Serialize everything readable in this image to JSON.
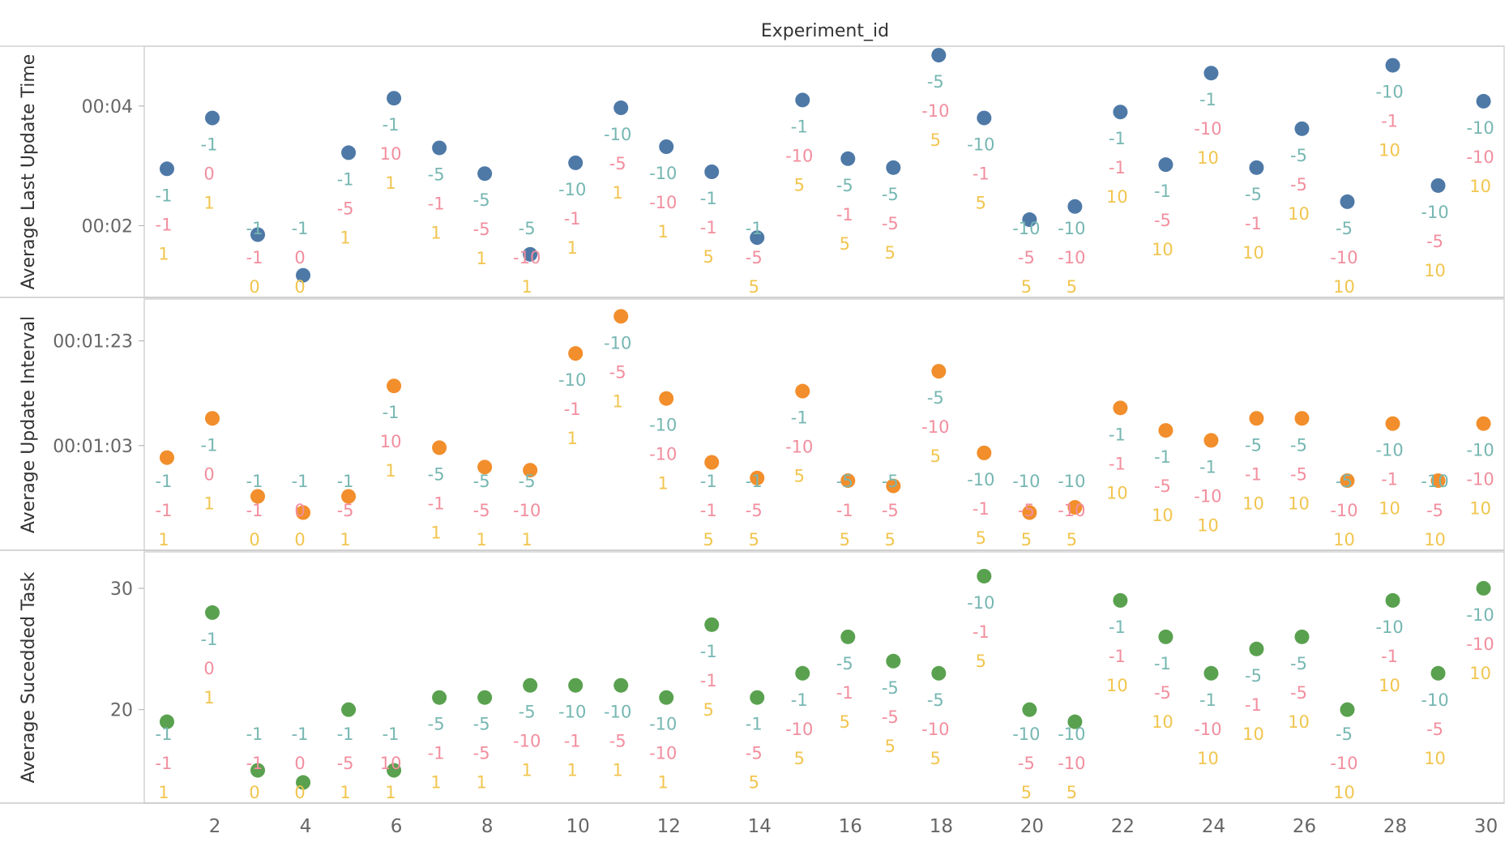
{
  "chart_data": {
    "type": "scatter",
    "title": "Experiment_id",
    "x": [
      1,
      2,
      3,
      4,
      5,
      6,
      7,
      8,
      9,
      10,
      11,
      12,
      13,
      14,
      15,
      16,
      17,
      18,
      19,
      20,
      21,
      22,
      23,
      24,
      25,
      26,
      27,
      28,
      29,
      30
    ],
    "x_ticks": [
      2,
      4,
      6,
      8,
      10,
      12,
      14,
      16,
      18,
      20,
      22,
      24,
      26,
      28,
      30
    ],
    "x_tick_labels": [
      "2",
      "4",
      "6",
      "8",
      "10",
      "12",
      "14",
      "16",
      "18",
      "20",
      "22",
      "24",
      "26",
      "28",
      "30"
    ],
    "label_colors": {
      "a": "#76b7b2",
      "b": "#f28e9e",
      "c": "#f1c54f"
    },
    "point_labels": {
      "a": [
        "-1",
        "-1",
        "-1",
        "-1",
        "-1",
        "-1",
        "-5",
        "-5",
        "-5",
        "-10",
        "-10",
        "-10",
        "-1",
        "-1",
        "-1",
        "-5",
        "-5",
        "-5",
        "-10",
        "-10",
        "-10",
        "-1",
        "-1",
        "-1",
        "-5",
        "-5",
        "-5",
        "-10",
        "-10",
        "-10"
      ],
      "b": [
        "-1",
        "0",
        "-1",
        "0",
        "-5",
        "10",
        "-1",
        "-5",
        "-10",
        "-1",
        "-5",
        "-10",
        "-1",
        "-5",
        "-10",
        "-1",
        "-5",
        "-10",
        "-1",
        "-5",
        "-10",
        "-1",
        "-5",
        "-10",
        "-1",
        "-5",
        "-10",
        "-1",
        "-5",
        "-10"
      ],
      "c": [
        "1",
        "1",
        "0",
        "0",
        "1",
        "1",
        "1",
        "1",
        "1",
        "1",
        "1",
        "1",
        "5",
        "5",
        "5",
        "5",
        "5",
        "5",
        "5",
        "5",
        "5",
        "10",
        "10",
        "10",
        "10",
        "10",
        "10",
        "10",
        "10",
        "10"
      ]
    },
    "panels": [
      {
        "ylabel": "Average Last Update Time",
        "color": "#4e79a7",
        "ylim": [
          0.8,
          5.0
        ],
        "yticks": [
          2,
          4
        ],
        "ytick_labels": [
          "00:02",
          "00:04"
        ],
        "unit": "seconds",
        "values": [
          2.95,
          3.8,
          1.85,
          1.17,
          3.22,
          4.13,
          3.3,
          2.87,
          1.52,
          3.05,
          3.97,
          3.32,
          2.9,
          1.8,
          4.1,
          3.12,
          2.97,
          4.85,
          3.8,
          2.1,
          2.32,
          3.9,
          3.02,
          4.55,
          2.97,
          3.62,
          2.4,
          4.68,
          2.67,
          4.08
        ]
      },
      {
        "ylabel": "Average Update Interval",
        "color": "#f28e2b",
        "ylim": [
          43,
          91
        ],
        "yticks": [
          63,
          83
        ],
        "ytick_labels": [
          "00:01:03",
          "00:01:23"
        ],
        "unit": "seconds",
        "values": [
          60.7,
          68.2,
          53.3,
          50.2,
          53.3,
          74.4,
          62.6,
          58.9,
          58.3,
          80.6,
          87.7,
          72.0,
          59.8,
          56.8,
          73.4,
          56.3,
          55.3,
          77.2,
          61.6,
          50.2,
          51.2,
          70.2,
          65.9,
          64.0,
          68.2,
          68.2,
          56.3,
          67.2,
          56.3,
          67.2
        ]
      },
      {
        "ylabel": "Average Sucedded Task",
        "color": "#59a14f",
        "ylim": [
          12.3,
          33.0
        ],
        "yticks": [
          20,
          30
        ],
        "ytick_labels": [
          "20",
          "30"
        ],
        "unit": "tasks",
        "values": [
          19,
          28,
          15,
          14,
          20,
          15,
          21,
          21,
          22,
          22,
          22,
          21,
          27,
          21,
          23,
          26,
          24,
          23,
          31,
          20,
          19,
          29,
          26,
          23,
          25,
          26,
          20,
          29,
          23,
          30
        ]
      }
    ]
  }
}
